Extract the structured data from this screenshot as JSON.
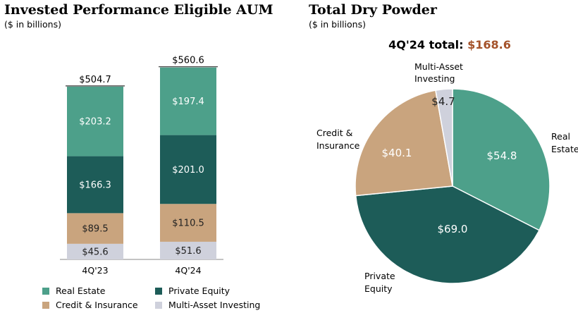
{
  "left_chart": {
    "title": "Invested Performance Eligible AUM",
    "subtitle": "($ in billions)"
  },
  "right_chart": {
    "title": "Total Dry Powder",
    "subtitle": "($ in billions)",
    "total_label": "4Q'24 total:",
    "total_value": "$168.6"
  },
  "colors": {
    "real_estate": "#4da08a",
    "private_equity": "#1d5c58",
    "credit_insurance": "#c9a47e",
    "multi_asset": "#cfd1dc",
    "accent": "#a4522a"
  },
  "legend": [
    {
      "label": "Real Estate",
      "color": "#4da08a"
    },
    {
      "label": "Private Equity",
      "color": "#1d5c58"
    },
    {
      "label": "Credit & Insurance",
      "color": "#c9a47e"
    },
    {
      "label": "Multi-Asset Investing",
      "color": "#cfd1dc"
    }
  ],
  "chart_data": [
    {
      "type": "bar",
      "stacked": true,
      "title": "Invested Performance Eligible AUM",
      "subtitle": "($ in billions)",
      "categories": [
        "4Q'23",
        "4Q'24"
      ],
      "totals": [
        504.7,
        560.6
      ],
      "total_labels": [
        "$504.7",
        "$560.6"
      ],
      "series": [
        {
          "name": "Multi-Asset Investing",
          "color": "#cfd1dc",
          "values": [
            45.6,
            51.6
          ],
          "labels": [
            "$45.6",
            "$51.6"
          ]
        },
        {
          "name": "Credit & Insurance",
          "color": "#c9a47e",
          "values": [
            89.5,
            110.5
          ],
          "labels": [
            "$89.5",
            "$110.5"
          ]
        },
        {
          "name": "Private Equity",
          "color": "#1d5c58",
          "values": [
            166.3,
            201.0
          ],
          "labels": [
            "$166.3",
            "$201.0"
          ]
        },
        {
          "name": "Real Estate",
          "color": "#4da08a",
          "values": [
            203.2,
            197.4
          ],
          "labels": [
            "$203.2",
            "$197.4"
          ]
        }
      ],
      "xlabel": "",
      "ylabel": ""
    },
    {
      "type": "pie",
      "title": "Total Dry Powder",
      "subtitle": "($ in billions)",
      "total": 168.6,
      "slices": [
        {
          "name": "Real Estate",
          "value": 54.8,
          "label": "$54.8",
          "category_label": [
            "Real",
            "Estate"
          ],
          "color": "#4da08a"
        },
        {
          "name": "Private Equity",
          "value": 69.0,
          "label": "$69.0",
          "category_label": [
            "Private",
            "Equity"
          ],
          "color": "#1d5c58"
        },
        {
          "name": "Credit & Insurance",
          "value": 40.1,
          "label": "$40.1",
          "category_label": [
            "Credit &",
            "Insurance"
          ],
          "color": "#c9a47e"
        },
        {
          "name": "Multi-Asset Investing",
          "value": 4.7,
          "label": "$4.7",
          "category_label": [
            "Multi-Asset",
            "Investing"
          ],
          "color": "#cfd1dc"
        }
      ]
    }
  ]
}
